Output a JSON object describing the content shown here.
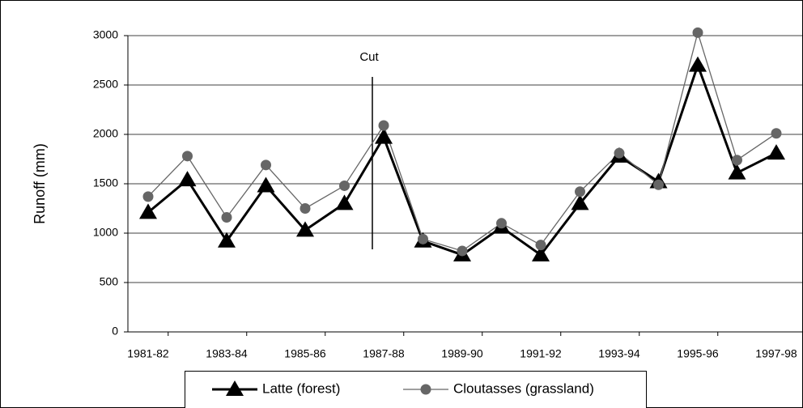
{
  "chart_data": {
    "type": "line",
    "y_label": "Runoff (mm)",
    "annotation": "Cut",
    "categories": [
      "1981-82",
      null,
      "1983-84",
      null,
      "1985-86",
      null,
      "1987-88",
      null,
      "1989-90",
      null,
      "1991-92",
      null,
      "1993-94",
      null,
      "1995-96",
      null,
      "1997-98"
    ],
    "series": [
      {
        "name": "Latte (forest)",
        "color": "#000000",
        "marker": "triangle",
        "values": [
          1210,
          1540,
          920,
          1480,
          1030,
          1300,
          1970,
          920,
          780,
          1060,
          780,
          1300,
          1780,
          1520,
          2700,
          1610,
          1810
        ]
      },
      {
        "name": "Cloutasses (grassland)",
        "color": "#666666",
        "marker": "circle",
        "values": [
          1370,
          1780,
          1160,
          1690,
          1250,
          1480,
          2090,
          940,
          820,
          1100,
          880,
          1420,
          1810,
          1490,
          3030,
          1740,
          2010
        ]
      }
    ],
    "ylim": [
      0,
      3000
    ],
    "yticks": [
      0,
      500,
      1000,
      1500,
      2000,
      2500,
      3000
    ],
    "grid": true
  }
}
